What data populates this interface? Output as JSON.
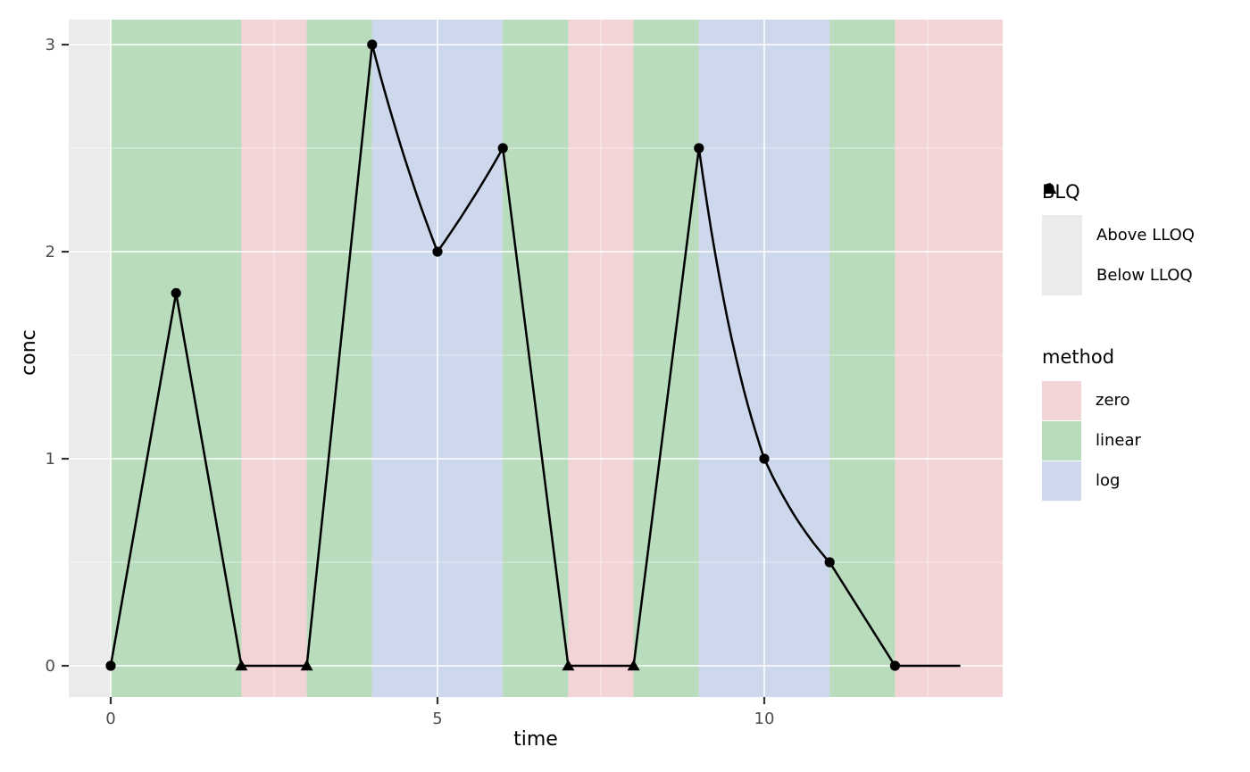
{
  "chart_data": {
    "type": "line",
    "x_axis": {
      "title": "time",
      "ticks": [
        {
          "value": 0,
          "label": "0"
        },
        {
          "value": 5,
          "label": "5"
        },
        {
          "value": 10,
          "label": "10"
        }
      ],
      "minor_ticks": [
        2.5,
        7.5,
        12.5
      ]
    },
    "y_axis": {
      "title": "conc",
      "ticks": [
        {
          "value": 0,
          "label": "0"
        },
        {
          "value": 1,
          "label": "1"
        },
        {
          "value": 2,
          "label": "2"
        },
        {
          "value": 3,
          "label": "3"
        }
      ],
      "minor_ticks": [
        0.5,
        1.5,
        2.5
      ]
    },
    "points": [
      {
        "time": 0,
        "conc": 0,
        "blq": "Above LLOQ"
      },
      {
        "time": 1,
        "conc": 1.8,
        "blq": "Above LLOQ"
      },
      {
        "time": 2,
        "conc": 0,
        "blq": "Below LLOQ"
      },
      {
        "time": 3,
        "conc": 0,
        "blq": "Below LLOQ"
      },
      {
        "time": 4,
        "conc": 3,
        "blq": "Above LLOQ"
      },
      {
        "time": 5,
        "conc": 2,
        "blq": "Above LLOQ"
      },
      {
        "time": 6,
        "conc": 2.5,
        "blq": "Above LLOQ"
      },
      {
        "time": 7,
        "conc": 0,
        "blq": "Below LLOQ"
      },
      {
        "time": 8,
        "conc": 0,
        "blq": "Below LLOQ"
      },
      {
        "time": 9,
        "conc": 2.5,
        "blq": "Above LLOQ"
      },
      {
        "time": 10,
        "conc": 1,
        "blq": "Above LLOQ"
      },
      {
        "time": 11,
        "conc": 0.5,
        "blq": "Above LLOQ"
      },
      {
        "time": 12,
        "conc": 0,
        "blq": "Above LLOQ"
      },
      {
        "time": 13,
        "conc": 0,
        "blq": null
      }
    ],
    "bands": [
      {
        "from": 0,
        "to": 2,
        "method": "linear"
      },
      {
        "from": 2,
        "to": 3,
        "method": "zero"
      },
      {
        "from": 3,
        "to": 4,
        "method": "linear"
      },
      {
        "from": 4,
        "to": 6,
        "method": "log"
      },
      {
        "from": 6,
        "to": 7,
        "method": "linear"
      },
      {
        "from": 7,
        "to": 8,
        "method": "zero"
      },
      {
        "from": 8,
        "to": 9,
        "method": "linear"
      },
      {
        "from": 9,
        "to": 11,
        "method": "log"
      },
      {
        "from": 11,
        "to": 12,
        "method": "linear"
      },
      {
        "from": 12,
        "to": null,
        "method": "zero"
      }
    ],
    "method_colors": {
      "zero": "#F2D3D6",
      "linear": "#B9DCBD",
      "log": "#CDD8EC"
    },
    "line_color": "#000000",
    "marker_color": "#000000",
    "panel_background": "#EBEBEB",
    "gridline_color": "#FFFFFF",
    "tick_color": "#333333",
    "tick_label_color": "#4D4D4D"
  },
  "legends": {
    "blq": {
      "title": "BLQ",
      "items": [
        {
          "label": "Above LLOQ",
          "marker": "circle"
        },
        {
          "label": "Below LLOQ",
          "marker": "triangle"
        }
      ]
    },
    "method": {
      "title": "method",
      "items": [
        {
          "label": "zero",
          "color": "#F2D3D6"
        },
        {
          "label": "linear",
          "color": "#B9DCBD"
        },
        {
          "label": "log",
          "color": "#CDD8EC"
        }
      ]
    }
  }
}
